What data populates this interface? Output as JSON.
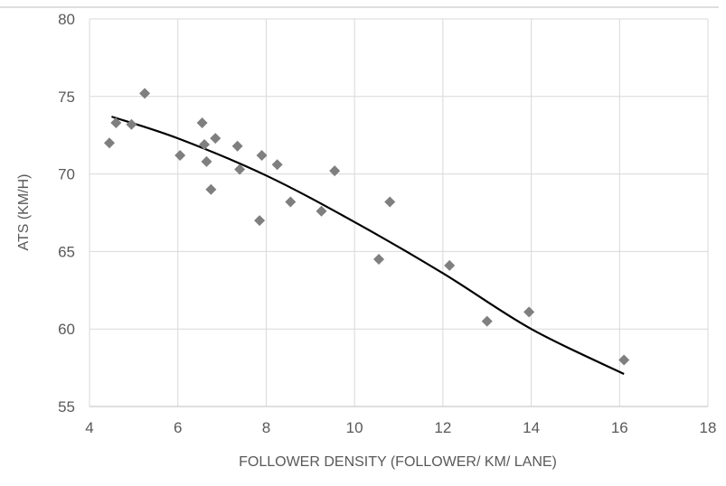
{
  "chart_data": {
    "type": "scatter",
    "title": "",
    "xlabel": "FOLLOWER DENSITY (FOLLOWER/ KM/ LANE)",
    "ylabel": "ATS (KM/H)",
    "xlim": [
      4,
      18
    ],
    "ylim": [
      55,
      80
    ],
    "x_ticks": [
      4,
      6,
      8,
      10,
      12,
      14,
      16,
      18
    ],
    "y_ticks": [
      55,
      60,
      65,
      70,
      75,
      80
    ],
    "x_tick_labels": [
      "4",
      "6",
      "8",
      "10",
      "12",
      "14",
      "16",
      "18"
    ],
    "y_tick_labels": [
      "55",
      "60",
      "65",
      "70",
      "75",
      "80"
    ],
    "grid": true,
    "marker": "diamond",
    "marker_color": "#7f7f7f",
    "trendline": {
      "type": "polynomial",
      "color": "#000000",
      "points": [
        [
          4.5,
          73.7
        ],
        [
          6,
          72.3
        ],
        [
          8,
          69.9
        ],
        [
          10,
          66.9
        ],
        [
          12,
          63.6
        ],
        [
          14,
          60.0
        ],
        [
          16.1,
          57.1
        ]
      ]
    },
    "series": [
      {
        "points": [
          [
            4.45,
            72.0
          ],
          [
            4.6,
            73.3
          ],
          [
            4.95,
            73.2
          ],
          [
            5.25,
            75.2
          ],
          [
            6.05,
            71.2
          ],
          [
            6.55,
            73.3
          ],
          [
            6.6,
            71.9
          ],
          [
            6.65,
            70.8
          ],
          [
            6.75,
            69.0
          ],
          [
            6.85,
            72.3
          ],
          [
            7.35,
            71.8
          ],
          [
            7.4,
            70.3
          ],
          [
            7.85,
            67.0
          ],
          [
            7.9,
            71.2
          ],
          [
            8.25,
            70.6
          ],
          [
            8.55,
            68.2
          ],
          [
            9.25,
            67.6
          ],
          [
            9.55,
            70.2
          ],
          [
            10.55,
            64.5
          ],
          [
            10.8,
            68.2
          ],
          [
            12.15,
            64.1
          ],
          [
            13.0,
            60.5
          ],
          [
            13.95,
            61.1
          ],
          [
            16.1,
            58.0
          ]
        ]
      }
    ]
  }
}
